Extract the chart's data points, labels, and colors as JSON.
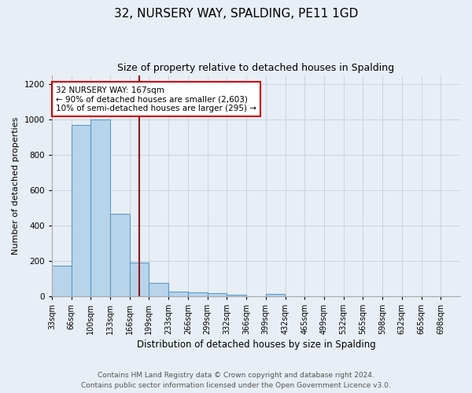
{
  "title": "32, NURSERY WAY, SPALDING, PE11 1GD",
  "subtitle": "Size of property relative to detached houses in Spalding",
  "xlabel": "Distribution of detached houses by size in Spalding",
  "ylabel": "Number of detached properties",
  "footer_line1": "Contains HM Land Registry data © Crown copyright and database right 2024.",
  "footer_line2": "Contains public sector information licensed under the Open Government Licence v3.0.",
  "annotation_title": "32 NURSERY WAY: 167sqm",
  "annotation_line2": "← 90% of detached houses are smaller (2,603)",
  "annotation_line3": "10% of semi-detached houses are larger (295) →",
  "categories": [
    "33sqm",
    "66sqm",
    "100sqm",
    "133sqm",
    "166sqm",
    "199sqm",
    "233sqm",
    "266sqm",
    "299sqm",
    "332sqm",
    "366sqm",
    "399sqm",
    "432sqm",
    "465sqm",
    "499sqm",
    "532sqm",
    "565sqm",
    "598sqm",
    "632sqm",
    "665sqm",
    "698sqm"
  ],
  "values": [
    170,
    970,
    1000,
    465,
    190,
    75,
    25,
    20,
    15,
    8,
    0,
    12,
    0,
    0,
    0,
    0,
    0,
    0,
    0,
    0,
    0
  ],
  "vline_index": 4.5,
  "bar_color": "#b8d4ea",
  "bar_edge_color": "#5a9bc8",
  "vline_color": "#8b1a1a",
  "bg_color": "#e8eef5",
  "grid_color": "#c8d0dc",
  "ylim": [
    0,
    1250
  ],
  "yticks": [
    0,
    200,
    400,
    600,
    800,
    1000,
    1200
  ],
  "title_fontsize": 11,
  "subtitle_fontsize": 9,
  "ylabel_fontsize": 8,
  "xlabel_fontsize": 8.5,
  "tick_fontsize": 7,
  "footer_fontsize": 6.5,
  "ann_fontsize": 7.5
}
